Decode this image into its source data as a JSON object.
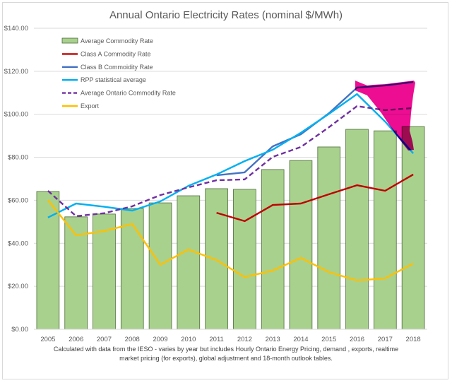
{
  "chart_data": {
    "type": "bar+line",
    "title": "Annual Ontario Electricity Rates (nominal $/MWh)",
    "xlabel": "",
    "ylabel": "",
    "ylim": [
      0,
      140
    ],
    "y_ticks": [
      "$0.00",
      "$20.00",
      "$40.00",
      "$60.00",
      "$80.00",
      "$100.00",
      "$120.00",
      "$140.00"
    ],
    "y_tick_values": [
      0,
      20,
      40,
      60,
      80,
      100,
      120,
      140
    ],
    "grid": true,
    "legend_position": "top-left (inside plot)",
    "categories": [
      "2005",
      "2006",
      "2007",
      "2008",
      "2009",
      "2010",
      "2011",
      "2012",
      "2013",
      "2014",
      "2015",
      "2016",
      "2017",
      "2018"
    ],
    "series": [
      {
        "name": "Average Commodity Rate",
        "kind": "bar",
        "color": "#a9d18e",
        "edge": "#4d6b3a",
        "values": [
          64.1,
          52.3,
          53.6,
          56.2,
          58.8,
          62.1,
          65.4,
          65.1,
          74.3,
          78.5,
          84.8,
          93.0,
          92.3,
          94.3
        ]
      },
      {
        "name": "Class A Commodity Rate",
        "kind": "line",
        "color": "#c00000",
        "dash": false,
        "values": [
          null,
          null,
          null,
          null,
          null,
          null,
          54.2,
          50.3,
          57.8,
          58.5,
          62.8,
          67.0,
          64.4,
          72.0
        ]
      },
      {
        "name": "Class B Commoidity Rate",
        "kind": "line",
        "color": "#4472c4",
        "dash": false,
        "values": [
          null,
          null,
          null,
          null,
          null,
          null,
          71.6,
          73.0,
          85.1,
          90.7,
          100.5,
          112.4,
          113.4,
          115.0
        ]
      },
      {
        "name": "RPP statistical average",
        "kind": "line",
        "color": "#00b0f0",
        "dash": false,
        "values": [
          52.0,
          58.5,
          57.0,
          55.2,
          59.5,
          66.7,
          72.0,
          78.2,
          83.5,
          91.4,
          100.2,
          109.4,
          96.6,
          81.8
        ]
      },
      {
        "name": "Average Ontario Commodity Rate",
        "kind": "line",
        "color": "#7030a0",
        "dash": true,
        "values": [
          64.4,
          52.6,
          54.0,
          57.2,
          62.4,
          66.0,
          69.3,
          69.7,
          80.2,
          84.8,
          94.0,
          103.8,
          101.9,
          102.9
        ]
      },
      {
        "name": "Export",
        "kind": "line",
        "color": "#ffc000",
        "dash": false,
        "values": [
          60.1,
          43.7,
          45.7,
          49.0,
          30.0,
          37.1,
          32.2,
          24.3,
          27.3,
          33.2,
          26.6,
          22.7,
          23.7,
          30.6
        ]
      }
    ],
    "annotations": [
      {
        "type": "highlight-scribble",
        "color": "#ec008c",
        "covers_categories": [
          "2016",
          "2017",
          "2018"
        ]
      }
    ],
    "footnote": [
      "Calculated with data from the IESO - varies by year but includes Hourly Ontario Energy Pricing, demand , exports, realtime",
      "market pricing (for exports), global adjustment and 18-month outlook tables."
    ]
  }
}
